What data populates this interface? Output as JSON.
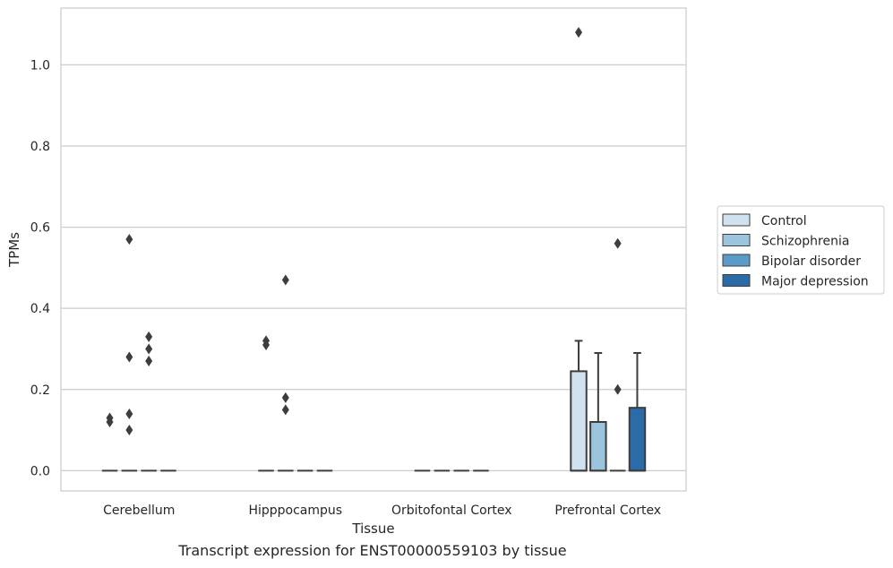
{
  "chart_data": {
    "type": "bar",
    "xlabel": "Tissue",
    "ylabel": "TPMs",
    "caption": "Transcript expression for ENST00000559103 by tissue",
    "categories": [
      "Cerebellum",
      "Hipppocampus",
      "Orbitofontal Cortex",
      "Prefrontal Cortex"
    ],
    "ylim": [
      -0.05,
      1.14
    ],
    "yticks": [
      "0.0",
      "0.2",
      "0.4",
      "0.6",
      "0.8",
      "1.0"
    ],
    "grid": "horizontal",
    "legend_position": "right",
    "series": [
      {
        "name": "Control",
        "color": "#d0e1f0",
        "boxes": [
          {
            "q1": 0,
            "median": 0,
            "q3": 0,
            "whisker_low": 0,
            "whisker_high": 0
          },
          {
            "q1": 0,
            "median": 0,
            "q3": 0,
            "whisker_low": 0,
            "whisker_high": 0
          },
          {
            "q1": 0,
            "median": 0,
            "q3": 0,
            "whisker_low": 0,
            "whisker_high": 0
          },
          {
            "q1": 0,
            "median": 0,
            "q3": 0.245,
            "whisker_low": 0,
            "whisker_high": 0.32
          }
        ],
        "outliers": [
          [
            0.12,
            0.13
          ],
          [
            0.31,
            0.32
          ],
          [],
          [
            1.08
          ]
        ]
      },
      {
        "name": "Schizophrenia",
        "color": "#9cc4dd",
        "boxes": [
          {
            "q1": 0,
            "median": 0,
            "q3": 0,
            "whisker_low": 0,
            "whisker_high": 0
          },
          {
            "q1": 0,
            "median": 0,
            "q3": 0,
            "whisker_low": 0,
            "whisker_high": 0
          },
          {
            "q1": 0,
            "median": 0,
            "q3": 0,
            "whisker_low": 0,
            "whisker_high": 0
          },
          {
            "q1": 0,
            "median": 0,
            "q3": 0.12,
            "whisker_low": 0,
            "whisker_high": 0.29
          }
        ],
        "outliers": [
          [
            0.28,
            0.57,
            0.1,
            0.14
          ],
          [
            0.18,
            0.47,
            0.15
          ],
          [],
          []
        ]
      },
      {
        "name": "Bipolar disorder",
        "color": "#5b9bc8",
        "boxes": [
          {
            "q1": 0,
            "median": 0,
            "q3": 0,
            "whisker_low": 0,
            "whisker_high": 0
          },
          {
            "q1": 0,
            "median": 0,
            "q3": 0,
            "whisker_low": 0,
            "whisker_high": 0
          },
          {
            "q1": 0,
            "median": 0,
            "q3": 0,
            "whisker_low": 0,
            "whisker_high": 0
          },
          {
            "q1": 0,
            "median": 0,
            "q3": 0,
            "whisker_low": 0,
            "whisker_high": 0
          }
        ],
        "outliers": [
          [
            0.33,
            0.3,
            0.27
          ],
          [],
          [],
          [
            0.56,
            0.2
          ]
        ]
      },
      {
        "name": "Major depression",
        "color": "#2b6ba8",
        "boxes": [
          {
            "q1": 0,
            "median": 0,
            "q3": 0,
            "whisker_low": 0,
            "whisker_high": 0
          },
          {
            "q1": 0,
            "median": 0,
            "q3": 0,
            "whisker_low": 0,
            "whisker_high": 0
          },
          {
            "q1": 0,
            "median": 0,
            "q3": 0,
            "whisker_low": 0,
            "whisker_high": 0
          },
          {
            "q1": 0,
            "median": 0,
            "q3": 0.155,
            "whisker_low": 0,
            "whisker_high": 0.29
          }
        ],
        "outliers": [
          [],
          [],
          [],
          []
        ]
      }
    ]
  }
}
